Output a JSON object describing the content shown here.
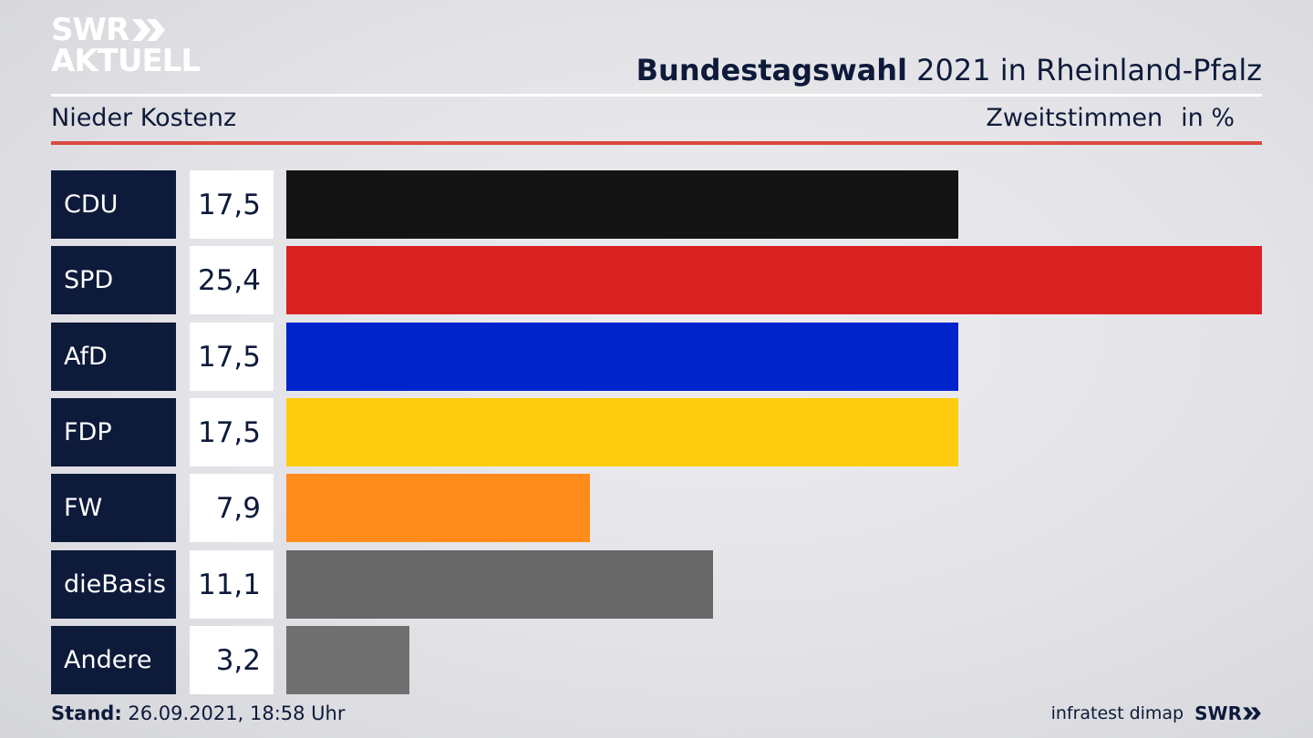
{
  "brand": {
    "line1": "SWR",
    "line2": "AKTUELL",
    "footer_logo": "SWR"
  },
  "header": {
    "title_bold": "Bundestagswahl",
    "title_rest": " 2021 in Rheinland-Pfalz",
    "location": "Nieder Kostenz",
    "measure": "Zweitstimmen",
    "unit": "in %"
  },
  "chart_data": {
    "type": "bar",
    "orientation": "horizontal",
    "categories": [
      "CDU",
      "SPD",
      "AfD",
      "FDP",
      "FW",
      "dieBasis",
      "Andere"
    ],
    "values": [
      17.5,
      25.4,
      17.5,
      17.5,
      7.9,
      11.1,
      3.2
    ],
    "value_labels": [
      "17,5",
      "25,4",
      "17,5",
      "17,5",
      "7,9",
      "11,1",
      "3,2"
    ],
    "colors": [
      "#141414",
      "#d92121",
      "#0024cc",
      "#ffcc0d",
      "#ff8c1a",
      "#676767",
      "#707070"
    ],
    "title": "Bundestagswahl 2021 in Rheinland-Pfalz",
    "xlabel": "",
    "ylabel": "",
    "xlim": [
      0,
      25.4
    ],
    "grid": false
  },
  "footer": {
    "stand_label": "Stand:",
    "stand_value": " 26.09.2021, 18:58 Uhr",
    "source": "infratest dimap"
  }
}
